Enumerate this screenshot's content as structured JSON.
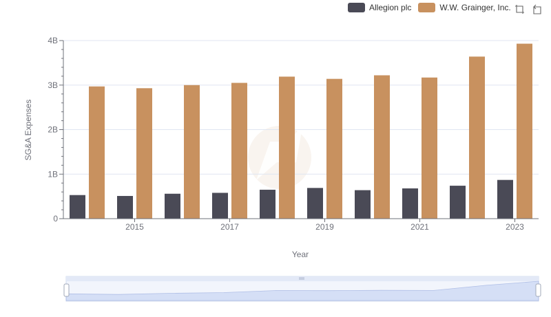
{
  "legend": {
    "items": [
      {
        "label": "Allegion plc",
        "color": "#4a4a56"
      },
      {
        "label": "W.W. Grainger, Inc.",
        "color": "#c8915f"
      }
    ]
  },
  "toolbox": {
    "zoom_icon": "zoom-icon",
    "restore_icon": "restore-icon"
  },
  "chart_data": {
    "type": "bar",
    "title": "",
    "xlabel": "Year",
    "ylabel": "SG&A Expenses",
    "categories": [
      "2014",
      "2015",
      "2016",
      "2017",
      "2018",
      "2019",
      "2020",
      "2021",
      "2022",
      "2023"
    ],
    "x_tick_labels": [
      "2015",
      "2017",
      "2019",
      "2021",
      "2023"
    ],
    "y_ticks": [
      0,
      1000000000,
      2000000000,
      3000000000,
      4000000000
    ],
    "y_tick_labels": [
      "0",
      "1B",
      "2B",
      "3B",
      "4B"
    ],
    "ylim": [
      0,
      4000000000
    ],
    "grid": true,
    "legend_position": "top-right",
    "series": [
      {
        "name": "Allegion plc",
        "color": "#4a4a56",
        "values": [
          530000000,
          510000000,
          560000000,
          580000000,
          650000000,
          690000000,
          640000000,
          680000000,
          740000000,
          870000000
        ]
      },
      {
        "name": "W.W. Grainger, Inc.",
        "color": "#c8915f",
        "values": [
          2970000000,
          2930000000,
          3000000000,
          3050000000,
          3190000000,
          3140000000,
          3220000000,
          3170000000,
          3640000000,
          3930000000
        ]
      }
    ]
  }
}
